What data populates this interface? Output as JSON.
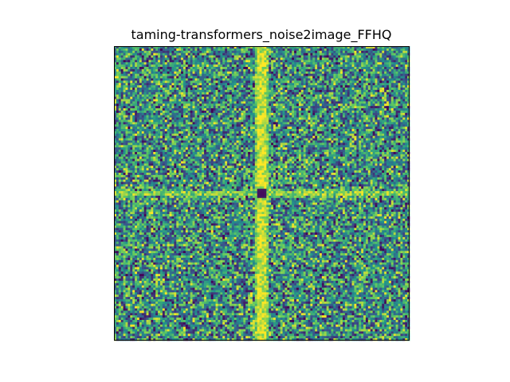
{
  "chart_data": {
    "type": "heatmap",
    "title": "taming-transformers_noise2image_FFHQ",
    "xlabel": "",
    "ylabel": "",
    "axes_ticks": "none",
    "grid": false,
    "colormap": "viridis",
    "grid_size": [
      128,
      128
    ],
    "value_range": [
      0,
      1
    ],
    "features": {
      "background": "random noise spread over the full colormap range",
      "center_minimum": "dark (low-value) dot at the exact center",
      "vertical_line": "bright (high-value) line along the center column",
      "horizontal_line": "bright (high-value) band along the center row"
    },
    "colors": [
      "#440154",
      "#3b528b",
      "#21918c",
      "#5ec962",
      "#fde725"
    ]
  }
}
